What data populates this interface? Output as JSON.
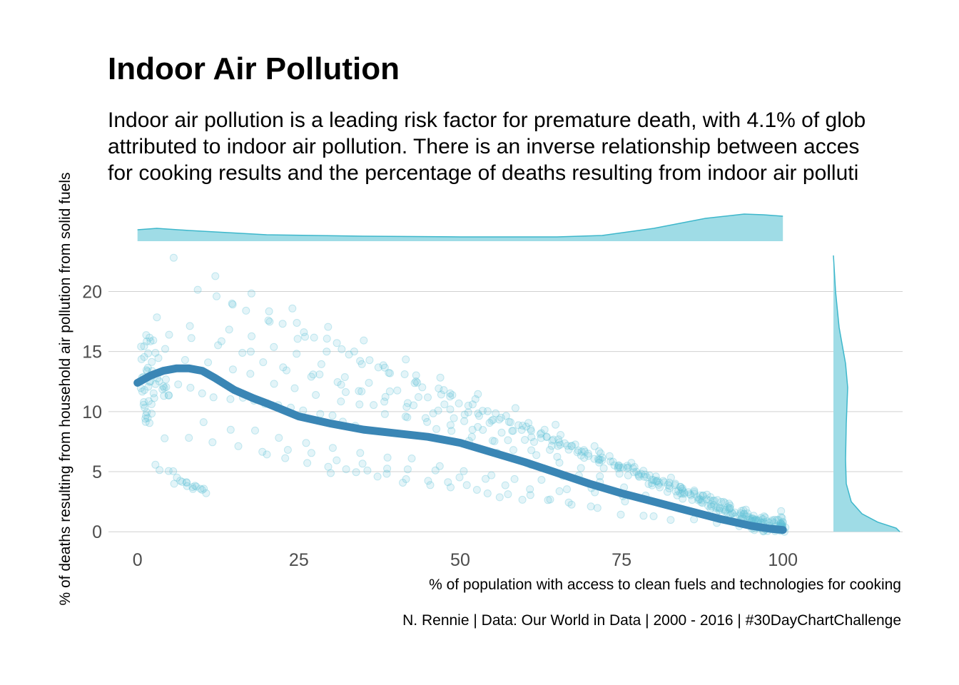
{
  "header": {
    "title": "Indoor Air Pollution",
    "subtitle_lines": [
      "Indoor air pollution is a leading risk factor for premature death, with 4.1% of glob",
      "attributed to indoor air pollution. There is an inverse relationship between acces",
      "for cooking results and the percentage of deaths resulting from indoor air polluti"
    ]
  },
  "caption": "N. Rennie | Data: Our World in Data | 2000 - 2016 | #30DayChartChallenge",
  "colors": {
    "points": "#62c4d6",
    "smooth_line": "#3a86b5",
    "density_fill": "#9fdce6",
    "density_line": "#3eb7cb",
    "grid": "#d0d0d0"
  },
  "chart_data": {
    "type": "scatter",
    "title": "Indoor Air Pollution",
    "xlabel": "% of population with access to clean fuels and technologies for cooking",
    "ylabel": "% of deaths resulting from household air pollution from solid fuels",
    "xlim": [
      -4.5,
      106.5
    ],
    "ylim": [
      -0.7,
      23
    ],
    "x_ticks": [
      0,
      25,
      50,
      75,
      100
    ],
    "y_ticks": [
      0,
      5,
      10,
      15,
      20
    ],
    "grid": "horizontal major lines only",
    "marginal_densities": "top (x distribution) and right (y distribution)",
    "smooth_curve": {
      "x": [
        0,
        2,
        4,
        6,
        8,
        10,
        12,
        15,
        18,
        20,
        25,
        30,
        35,
        40,
        45,
        50,
        55,
        60,
        65,
        70,
        75,
        80,
        85,
        90,
        95,
        98,
        100
      ],
      "y": [
        12.4,
        13.0,
        13.4,
        13.6,
        13.6,
        13.4,
        12.8,
        11.8,
        11.1,
        10.7,
        9.6,
        9.0,
        8.5,
        8.2,
        7.9,
        7.4,
        6.6,
        5.8,
        4.9,
        4.0,
        3.2,
        2.5,
        1.8,
        1.1,
        0.5,
        0.25,
        0.15
      ]
    },
    "trajectories": [
      {
        "x0": 6,
        "y0": 22.8,
        "x1": 100,
        "y1": 0.3,
        "n": 17
      },
      {
        "x0": 9,
        "y0": 20.0,
        "x1": 100,
        "y1": 0.5,
        "n": 17
      },
      {
        "x0": 12,
        "y0": 19.8,
        "x1": 95,
        "y1": 0.4,
        "n": 17
      },
      {
        "x0": 15,
        "y0": 19.0,
        "x1": 100,
        "y1": 0.3,
        "n": 17
      },
      {
        "x0": 20,
        "y0": 18.5,
        "x1": 93,
        "y1": 0.6,
        "n": 17
      },
      {
        "x0": 3,
        "y0": 18.0,
        "x1": 80,
        "y1": 1.5,
        "n": 17
      },
      {
        "x0": 14,
        "y0": 17.0,
        "x1": 72,
        "y1": 4.5,
        "n": 17
      },
      {
        "x0": 25,
        "y0": 16.0,
        "x1": 100,
        "y1": 0.2,
        "n": 17
      },
      {
        "x0": 5,
        "y0": 16.5,
        "x1": 64,
        "y1": 7.0,
        "n": 17
      },
      {
        "x0": 1,
        "y0": 15.5,
        "x1": 55,
        "y1": 7.5,
        "n": 17
      },
      {
        "x0": 35,
        "y0": 14.0,
        "x1": 100,
        "y1": 0.3,
        "n": 17
      },
      {
        "x0": 28,
        "y0": 13.0,
        "x1": 82,
        "y1": 2.2,
        "n": 17
      },
      {
        "x0": 40,
        "y0": 12.0,
        "x1": 98,
        "y1": 0.5,
        "n": 17
      },
      {
        "x0": 2,
        "y0": 12.5,
        "x1": 34,
        "y1": 9.0,
        "n": 17
      },
      {
        "x0": 45,
        "y0": 11.0,
        "x1": 97,
        "y1": 1.0,
        "n": 17
      },
      {
        "x0": 50,
        "y0": 10.5,
        "x1": 99,
        "y1": 0.2,
        "n": 17
      },
      {
        "x0": 10,
        "y0": 9.0,
        "x1": 75,
        "y1": 3.0,
        "n": 17
      },
      {
        "x0": 55,
        "y0": 9.5,
        "x1": 100,
        "y1": 0.5,
        "n": 17
      },
      {
        "x0": 60,
        "y0": 8.5,
        "x1": 96,
        "y1": 0.8,
        "n": 17
      },
      {
        "x0": 4,
        "y0": 8.0,
        "x1": 65,
        "y1": 3.5,
        "n": 17
      },
      {
        "x0": 65,
        "y0": 7.5,
        "x1": 100,
        "y1": 0.2,
        "n": 17
      },
      {
        "x0": 70,
        "y0": 6.5,
        "x1": 99,
        "y1": 0.6,
        "n": 17
      },
      {
        "x0": 20,
        "y0": 6.5,
        "x1": 70,
        "y1": 2.0,
        "n": 17
      },
      {
        "x0": 30,
        "y0": 5.0,
        "x1": 90,
        "y1": 0.5,
        "n": 17
      },
      {
        "x0": 75,
        "y0": 5.5,
        "x1": 100,
        "y1": 0.4,
        "n": 17
      },
      {
        "x0": 80,
        "y0": 4.0,
        "x1": 100,
        "y1": 0.2,
        "n": 17
      },
      {
        "x0": 85,
        "y0": 3.0,
        "x1": 99,
        "y1": 0.3,
        "n": 17
      },
      {
        "x0": 3,
        "y0": 5.5,
        "x1": 10,
        "y1": 3.4,
        "n": 10
      },
      {
        "x0": 6,
        "y0": 4.2,
        "x1": 11,
        "y1": 3.4,
        "n": 9
      },
      {
        "x0": 90,
        "y0": 2.0,
        "x1": 100,
        "y1": 0.1,
        "n": 10
      }
    ],
    "clusters": [
      {
        "x": [
          0.5,
          2.5
        ],
        "y": [
          9,
          16.5
        ],
        "n": 34
      },
      {
        "x": [
          2.5,
          5
        ],
        "y": [
          11,
          15
        ],
        "n": 14
      },
      {
        "x": [
          99.5,
          100
        ],
        "y": [
          0,
          1.9
        ],
        "n": 14
      },
      {
        "x": [
          95,
          100
        ],
        "y": [
          0,
          1
        ],
        "n": 24
      }
    ]
  }
}
